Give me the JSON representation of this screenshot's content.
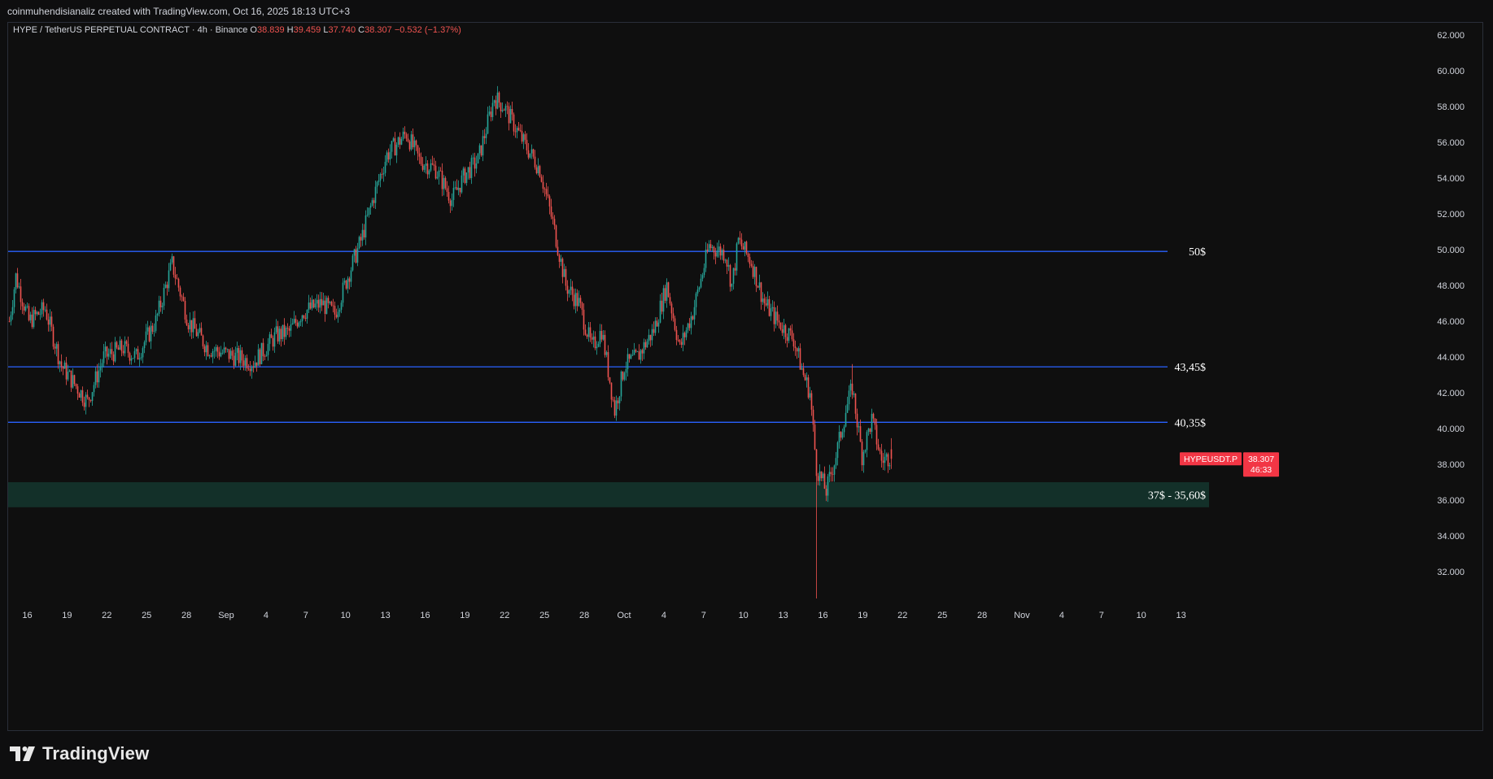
{
  "header": {
    "credit": "coinmuhendisianaliz created with TradingView.com, Oct 16, 2025 18:13 UTC+3"
  },
  "legend": {
    "symbol": "HYPE / TetherUS PERPETUAL CONTRACT · 4h · Binance",
    "o_label": "O",
    "o": "38.839",
    "h_label": "H",
    "h": "39.459",
    "l_label": "L",
    "l": "37.740",
    "c_label": "C",
    "c": "38.307",
    "change": "−0.532 (−1.37%)"
  },
  "brand": {
    "name": "TradingView"
  },
  "price_tag": {
    "symbol": "HYPEUSDT.P",
    "price": "38.307",
    "countdown": "46:33"
  },
  "colors": {
    "up": "#26a69a",
    "down": "#ef5350",
    "level": "#2962ff",
    "zone": "#133029",
    "tag": "#f23645",
    "bg": "#0f0f0f"
  },
  "chart_data": {
    "type": "candlestick",
    "ylim": [
      30.0,
      63.0
    ],
    "y_ticks": [
      "62.000",
      "60.000",
      "58.000",
      "56.000",
      "54.000",
      "52.000",
      "50.000",
      "48.000",
      "46.000",
      "44.000",
      "42.000",
      "40.000",
      "38.000",
      "36.000",
      "34.000",
      "32.000"
    ],
    "x_ticks": [
      "16",
      "19",
      "22",
      "25",
      "28",
      "Sep",
      "4",
      "7",
      "10",
      "13",
      "16",
      "19",
      "22",
      "25",
      "28",
      "Oct",
      "4",
      "7",
      "10",
      "13",
      "16",
      "19",
      "22",
      "25",
      "28",
      "Nov",
      "4",
      "7",
      "10",
      "13"
    ],
    "horizontal_levels": [
      {
        "label": "50$",
        "value": 49.9
      },
      {
        "label": "43,45$",
        "value": 43.45
      },
      {
        "label": "40,35$",
        "value": 40.35
      }
    ],
    "zone": {
      "label": "37$ - 35,60$",
      "from": 35.6,
      "to": 37.0
    },
    "close_anchors": [
      [
        0,
        46.0
      ],
      [
        4,
        48.5
      ],
      [
        12,
        46.0
      ],
      [
        22,
        46.7
      ],
      [
        32,
        43.5
      ],
      [
        48,
        41.5
      ],
      [
        58,
        44.0
      ],
      [
        70,
        44.5
      ],
      [
        78,
        44.0
      ],
      [
        90,
        46.0
      ],
      [
        100,
        49.2
      ],
      [
        110,
        46.0
      ],
      [
        122,
        44.5
      ],
      [
        136,
        44.1
      ],
      [
        150,
        43.7
      ],
      [
        164,
        45.2
      ],
      [
        172,
        45.4
      ],
      [
        180,
        46.5
      ],
      [
        192,
        47.0
      ],
      [
        200,
        46.4
      ],
      [
        208,
        48.5
      ],
      [
        216,
        50.5
      ],
      [
        224,
        53.0
      ],
      [
        232,
        55.3
      ],
      [
        244,
        56.5
      ],
      [
        252,
        55.0
      ],
      [
        262,
        54.5
      ],
      [
        272,
        52.8
      ],
      [
        280,
        54.2
      ],
      [
        288,
        55.0
      ],
      [
        298,
        58.5
      ],
      [
        304,
        58.0
      ],
      [
        316,
        56.0
      ],
      [
        326,
        54.5
      ],
      [
        334,
        51.5
      ],
      [
        342,
        48.0
      ],
      [
        350,
        47.0
      ],
      [
        358,
        44.5
      ],
      [
        364,
        45.5
      ],
      [
        372,
        41.0
      ],
      [
        378,
        43.5
      ],
      [
        386,
        44.0
      ],
      [
        396,
        45.5
      ],
      [
        404,
        48.0
      ],
      [
        412,
        44.5
      ],
      [
        420,
        46.5
      ],
      [
        430,
        50.2
      ],
      [
        440,
        49.8
      ],
      [
        444,
        48.0
      ],
      [
        448,
        50.5
      ],
      [
        456,
        49.3
      ],
      [
        464,
        47.0
      ],
      [
        472,
        46.0
      ],
      [
        482,
        45.0
      ],
      [
        488,
        43.0
      ],
      [
        492,
        42.0
      ],
      [
        496,
        37.8
      ],
      [
        502,
        36.5
      ],
      [
        508,
        38.5
      ],
      [
        514,
        41.0
      ],
      [
        518,
        42.3
      ],
      [
        524,
        38.5
      ],
      [
        530,
        40.5
      ],
      [
        536,
        38.2
      ],
      [
        542,
        38.5
      ]
    ],
    "wick_spikes": [
      {
        "candle": 496,
        "low": 30.5
      },
      {
        "candle": 518,
        "high": 43.6
      }
    ],
    "candle_count": 543,
    "last": {
      "open": 38.839,
      "high": 39.459,
      "low": 37.74,
      "close": 38.307
    }
  }
}
